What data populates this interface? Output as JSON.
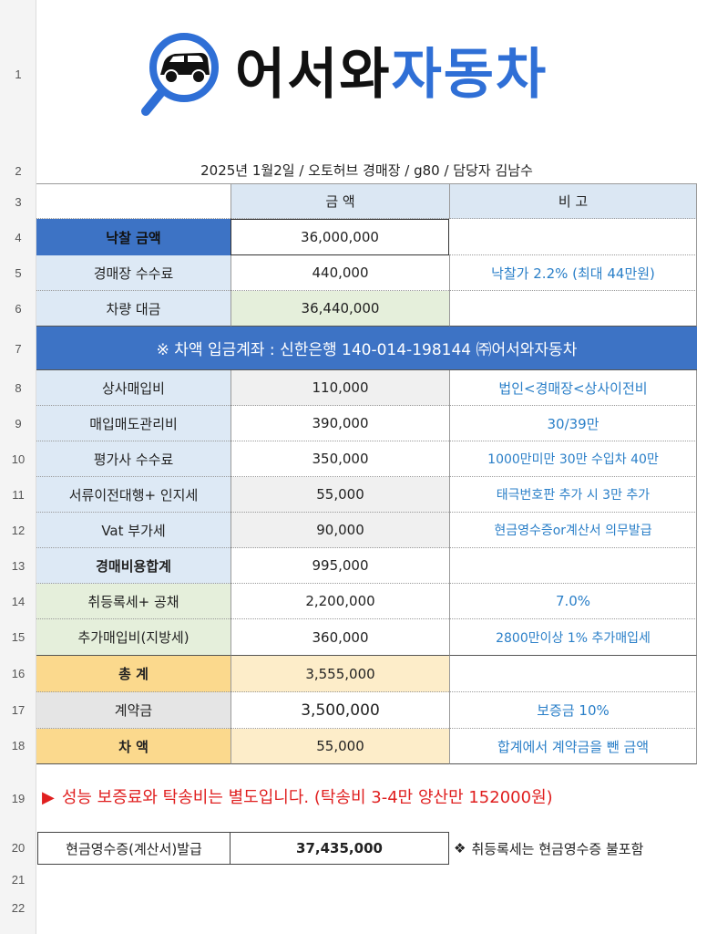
{
  "row_numbers": [
    "1",
    "2",
    "3",
    "4",
    "5",
    "6",
    "7",
    "8",
    "9",
    "10",
    "11",
    "12",
    "13",
    "14",
    "15",
    "16",
    "17",
    "18",
    "19",
    "20",
    "21",
    "22"
  ],
  "logo": {
    "part1": "어서와",
    "part2": "자동차",
    "icon": "magnifier-car-icon",
    "accent": "#2f6fd6"
  },
  "subtitle": "2025년 1월2일 / 오토허브 경매장  / g80  / 담당자 김남수",
  "header": {
    "amount": "금    액",
    "note": "비    고"
  },
  "rows": [
    {
      "label": "낙찰 금액",
      "amount": "36,000,000",
      "note": ""
    },
    {
      "label": "경매장 수수료",
      "amount": "440,000",
      "note": "낙찰가 2.2% (최대 44만원)"
    },
    {
      "label": "차량 대금",
      "amount": "36,440,000",
      "note": ""
    },
    {
      "banner": "※ 차액 입금계좌 : 신한은행 140-014-198144  ㈜어서와자동차"
    },
    {
      "label": "상사매입비",
      "amount": "110,000",
      "note": "법인<경매장<상사이전비"
    },
    {
      "label": "매입매도관리비",
      "amount": "390,000",
      "note": "30/39만"
    },
    {
      "label": "평가사 수수료",
      "amount": "350,000",
      "note": "1000만미만 30만 수입차 40만"
    },
    {
      "label": "서류이전대행+ 인지세",
      "amount": "55,000",
      "note": "태극번호판 추가 시 3만 추가"
    },
    {
      "label": "Vat 부가세",
      "amount": "90,000",
      "note": "현금영수증or계산서 의무발급"
    },
    {
      "label": "경매비용합계",
      "amount": "995,000",
      "note": ""
    },
    {
      "label": "취등록세+ 공채",
      "amount": "2,200,000",
      "note": "7.0%"
    },
    {
      "label": "추가매입비(지방세)",
      "amount": "360,000",
      "note": "2800만이상 1%  추가매입세"
    },
    {
      "label": "총   계",
      "amount": "3,555,000",
      "note": ""
    },
    {
      "label": "계약금",
      "amount": "3,500,000",
      "note": "보증금 10%"
    },
    {
      "label": "차   액",
      "amount": "55,000",
      "note": "합계에서 계약금을 뺀 금액"
    }
  ],
  "notice": "성능 보증료와 탁송비는 별도입니다. (탁송비 3-4만 양산만 152000원)",
  "receipt": {
    "label": "현금영수증(계산서)발급",
    "value": "37,435,000",
    "note": "취등록세는 현금영수증 불포함"
  }
}
